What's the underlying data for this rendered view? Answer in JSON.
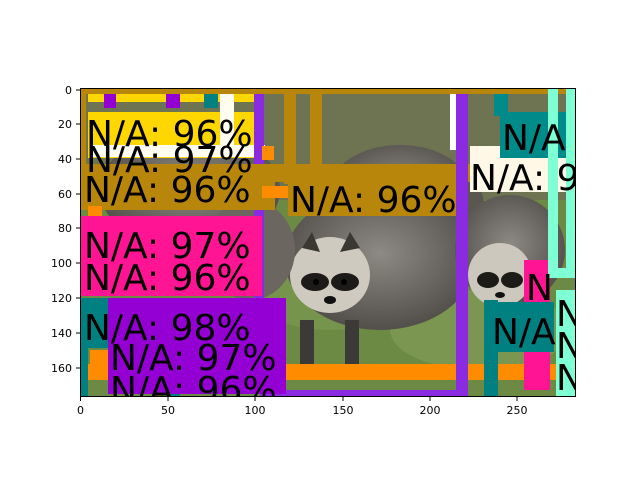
{
  "image_description_hidden": "",
  "axes": {
    "x_ticks": [
      "0",
      "50",
      "100",
      "150",
      "200",
      "250"
    ],
    "y_ticks": [
      "0",
      "20",
      "40",
      "60",
      "80",
      "100",
      "120",
      "140",
      "160"
    ],
    "xlim": [
      0,
      284
    ],
    "ylim_inverted": [
      177,
      0
    ]
  },
  "detections": [
    {
      "label": "N/A: 96%",
      "color": "#FFD700"
    },
    {
      "label": "N/A: 97%",
      "color": "#FFFDF0"
    },
    {
      "label": "N/A: 96%",
      "color": "#B8860B"
    },
    {
      "label": "N/A: 96%",
      "color": "#B8860B"
    },
    {
      "label": "N/A: 9",
      "color": "#FFF8E7"
    },
    {
      "label": "N/A",
      "color": "#008B8B"
    },
    {
      "label": "N/A: 97%",
      "color": "#FF1493"
    },
    {
      "label": "N/A: 96%",
      "color": "#FF1493"
    },
    {
      "label": "N/A: 98%",
      "color": "#008080"
    },
    {
      "label": "N/A",
      "color": "#008080"
    },
    {
      "label": "N/A: 97%",
      "color": "#9400D3"
    },
    {
      "label": "N/A: 96%",
      "color": "#9400D3"
    },
    {
      "label": "N",
      "color": "#FF1493"
    },
    {
      "label": "N",
      "color": "#7FFFD4"
    },
    {
      "label": "N",
      "color": "#7FFFD4"
    },
    {
      "label": "N",
      "color": "#7FFFD4"
    }
  ]
}
